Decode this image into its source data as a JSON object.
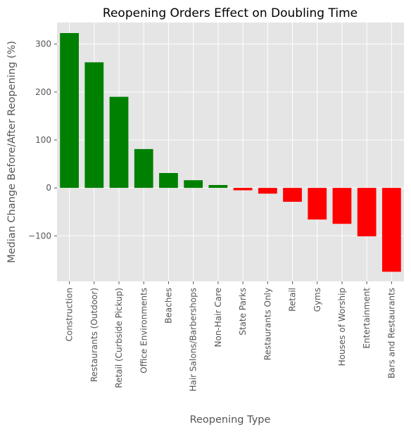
{
  "chart_data": {
    "type": "bar",
    "title": "Reopening Orders Effect on Doubling Time",
    "xlabel": "Reopening Type",
    "ylabel": "Median Change Before/After Reopening (%)",
    "categories": [
      "Construction",
      "Restaurants (Outdoor)",
      "Retail (Curbside Pickup)",
      "Office Environments",
      "Beaches",
      "Hair Salons/Barbershops",
      "Non-Hair Care",
      "State Parks",
      "Restaurants Only",
      "Retail",
      "Gyms",
      "Houses of Worship",
      "Entertainment",
      "Bars and Restaurants"
    ],
    "values": [
      323,
      262,
      190,
      81,
      31,
      16,
      6,
      -5,
      -12,
      -29,
      -66,
      -75,
      -101,
      -175
    ],
    "yticks": [
      -100,
      0,
      100,
      200,
      300
    ],
    "yticklabels": [
      "−100",
      "0",
      "100",
      "200",
      "300"
    ],
    "ylim": [
      -195,
      345
    ],
    "positive_color": "#008000",
    "negative_color": "#ff0000",
    "plot_background": "#e5e5e5",
    "grid": true,
    "grid_color": "#ffffff",
    "style": "ggplot"
  }
}
